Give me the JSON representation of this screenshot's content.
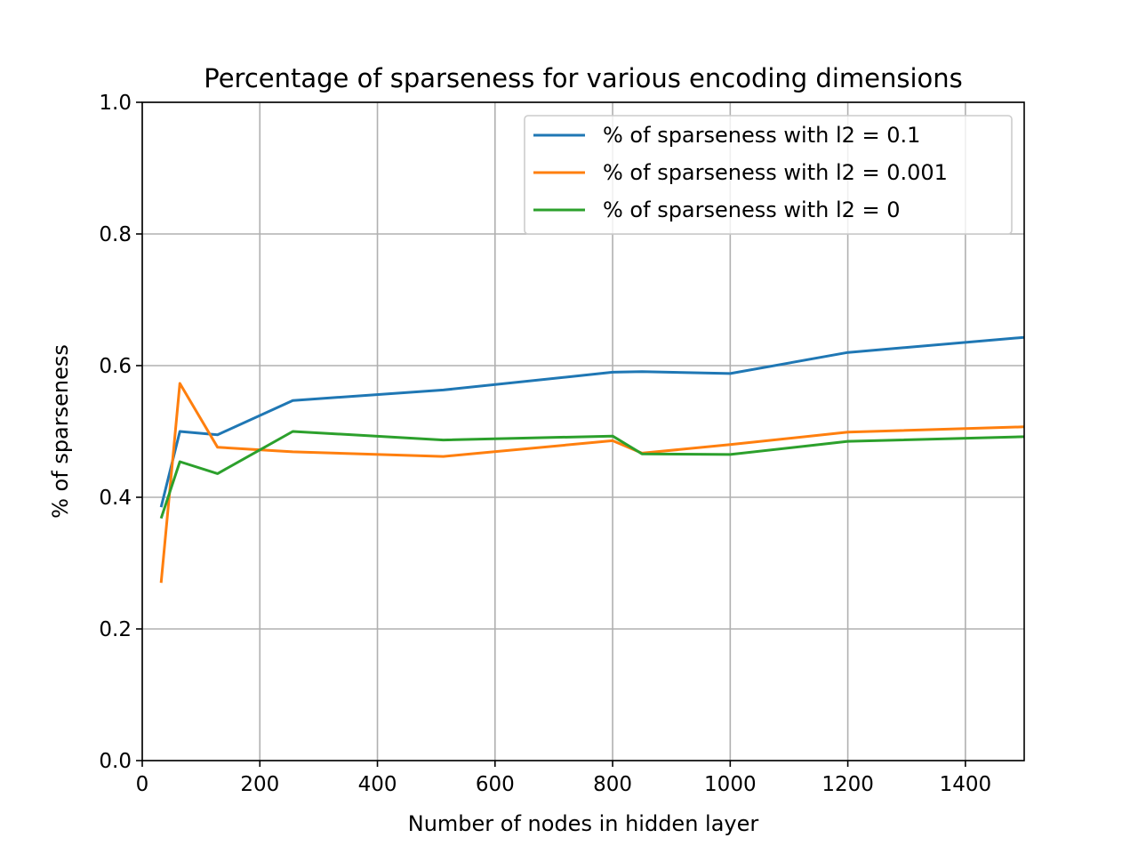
{
  "chart_data": {
    "type": "line",
    "title": "Percentage of sparseness for various encoding dimensions",
    "xlabel": "Number of nodes in hidden layer",
    "ylabel": "% of sparseness",
    "xlim": [
      0,
      1500
    ],
    "ylim": [
      0.0,
      1.0
    ],
    "xticks": [
      0,
      200,
      400,
      600,
      800,
      1000,
      1200,
      1400
    ],
    "xtick_labels": [
      "0",
      "200",
      "400",
      "600",
      "800",
      "1000",
      "1200",
      "1400"
    ],
    "yticks": [
      0.0,
      0.2,
      0.4,
      0.6,
      0.8,
      1.0
    ],
    "ytick_labels": [
      "0.0",
      "0.2",
      "0.4",
      "0.6",
      "0.8",
      "1.0"
    ],
    "grid": true,
    "legend_position": "top-right",
    "series": [
      {
        "name": "% of sparseness with l2 = 0.1",
        "color": "#1f77b4",
        "x": [
          32,
          64,
          128,
          256,
          512,
          800,
          850,
          1000,
          1200,
          1500
        ],
        "y": [
          0.385,
          0.5,
          0.495,
          0.547,
          0.563,
          0.59,
          0.591,
          0.588,
          0.62,
          0.643
        ]
      },
      {
        "name": "% of sparseness with l2 = 0.001",
        "color": "#ff7f0e",
        "x": [
          32,
          64,
          128,
          256,
          512,
          800,
          850,
          1000,
          1200,
          1500
        ],
        "y": [
          0.27,
          0.573,
          0.476,
          0.469,
          0.462,
          0.486,
          0.467,
          0.48,
          0.499,
          0.507
        ]
      },
      {
        "name": "% of sparseness with l2 = 0",
        "color": "#2ca02c",
        "x": [
          32,
          64,
          128,
          256,
          512,
          800,
          850,
          1000,
          1200,
          1500
        ],
        "y": [
          0.368,
          0.454,
          0.436,
          0.5,
          0.487,
          0.493,
          0.466,
          0.465,
          0.485,
          0.492
        ]
      }
    ]
  }
}
